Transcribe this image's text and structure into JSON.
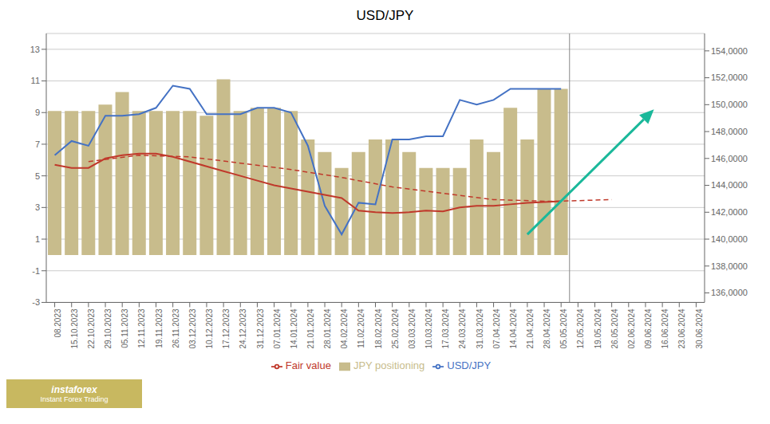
{
  "chart_data": {
    "type": "bar",
    "title": "USD/JPY",
    "categories": [
      "08.2023",
      "15.10.2023",
      "22.10.2023",
      "29.10.2023",
      "05.11.2023",
      "12.11.2023",
      "19.11.2023",
      "26.11.2023",
      "03.12.2023",
      "10.12.2023",
      "17.12.2023",
      "24.12.2023",
      "31.12.2023",
      "07.01.2024",
      "14.01.2024",
      "21.01.2024",
      "28.01.2024",
      "04.02.2024",
      "11.02.2024",
      "18.02.2024",
      "25.02.2024",
      "03.03.2024",
      "10.03.2024",
      "17.03.2024",
      "24.03.2024",
      "31.03.2024",
      "07.04.2024",
      "14.04.2024",
      "21.04.2024",
      "28.04.2024",
      "05.05.2024",
      "12.05.2024",
      "19.05.2024",
      "26.05.2024",
      "02.06.2024",
      "09.06.2024",
      "16.06.2024",
      "23.06.2024",
      "30.06.2024"
    ],
    "series": [
      {
        "name": "JPY positioning",
        "type": "bar",
        "color": "#c8bc8c",
        "values": [
          9.1,
          9.1,
          9.1,
          9.5,
          10.3,
          9.1,
          9.1,
          9.1,
          9.1,
          8.8,
          11.1,
          9.1,
          9.3,
          9.3,
          9.1,
          7.3,
          6.5,
          5.5,
          6.5,
          7.3,
          7.3,
          6.5,
          5.5,
          5.5,
          5.5,
          7.3,
          6.5,
          9.3,
          7.3,
          10.5,
          10.5,
          null,
          null,
          null,
          null,
          null,
          null,
          null,
          null
        ]
      },
      {
        "name": "USD/JPY",
        "type": "line",
        "color": "#4472c4",
        "values": [
          6.3,
          7.2,
          6.9,
          8.8,
          8.8,
          8.9,
          9.3,
          10.7,
          10.5,
          8.9,
          8.9,
          8.9,
          9.3,
          9.3,
          9.0,
          6.9,
          3.1,
          1.3,
          3.3,
          3.2,
          7.3,
          7.3,
          7.5,
          7.5,
          9.8,
          9.5,
          9.8,
          10.5,
          10.5,
          10.5,
          10.5,
          null,
          null,
          null,
          null,
          null,
          null,
          null,
          null
        ]
      },
      {
        "name": "Fair value",
        "type": "line",
        "color": "#c0392b",
        "values": [
          5.7,
          5.5,
          5.5,
          6.1,
          6.3,
          6.4,
          6.4,
          6.2,
          5.9,
          5.6,
          5.3,
          5.0,
          4.7,
          4.4,
          4.2,
          4.0,
          3.8,
          3.6,
          2.8,
          2.7,
          2.65,
          2.7,
          2.8,
          2.75,
          3.0,
          3.1,
          3.1,
          3.2,
          3.3,
          3.35,
          3.4,
          null,
          null,
          null,
          null,
          null,
          null,
          null,
          null
        ]
      },
      {
        "name": "Fair value",
        "type": "line",
        "color": "#c0392b",
        "line_style": "dashed",
        "values": [
          null,
          null,
          5.9,
          null,
          null,
          6.3,
          null,
          null,
          6.2,
          null,
          null,
          5.8,
          null,
          null,
          5.4,
          null,
          null,
          4.9,
          null,
          null,
          4.3,
          null,
          null,
          3.9,
          null,
          null,
          3.5,
          null,
          null,
          3.4,
          3.4,
          null,
          null,
          3.5,
          null,
          null,
          null,
          null,
          null
        ]
      }
    ],
    "ylim": [
      -3,
      14
    ],
    "yticks": [
      -3,
      -1,
      1,
      3,
      5,
      7,
      9,
      11,
      13
    ],
    "y2lim": [
      135294,
      155294
    ],
    "y2ticks": [
      {
        "value": 136000,
        "label": "136,0000"
      },
      {
        "value": 138000,
        "label": "138,0000"
      },
      {
        "value": 140000,
        "label": "140,0000"
      },
      {
        "value": 142000,
        "label": "142,0000"
      },
      {
        "value": 144000,
        "label": "144,0000"
      },
      {
        "value": 146000,
        "label": "146,0000"
      },
      {
        "value": 148000,
        "label": "148,0000"
      },
      {
        "value": 150000,
        "label": "150,0000"
      },
      {
        "value": 152000,
        "label": "152,0000"
      },
      {
        "value": 154000,
        "label": "154,0000"
      }
    ],
    "grid": true,
    "legend": "bottom",
    "arrow": {
      "x": [
        28.0,
        35.5
      ],
      "y": [
        1.3,
        9.2
      ],
      "color": "#1ab89a"
    },
    "annotations": [
      "instaforex",
      "Instant Forex Trading"
    ]
  }
}
